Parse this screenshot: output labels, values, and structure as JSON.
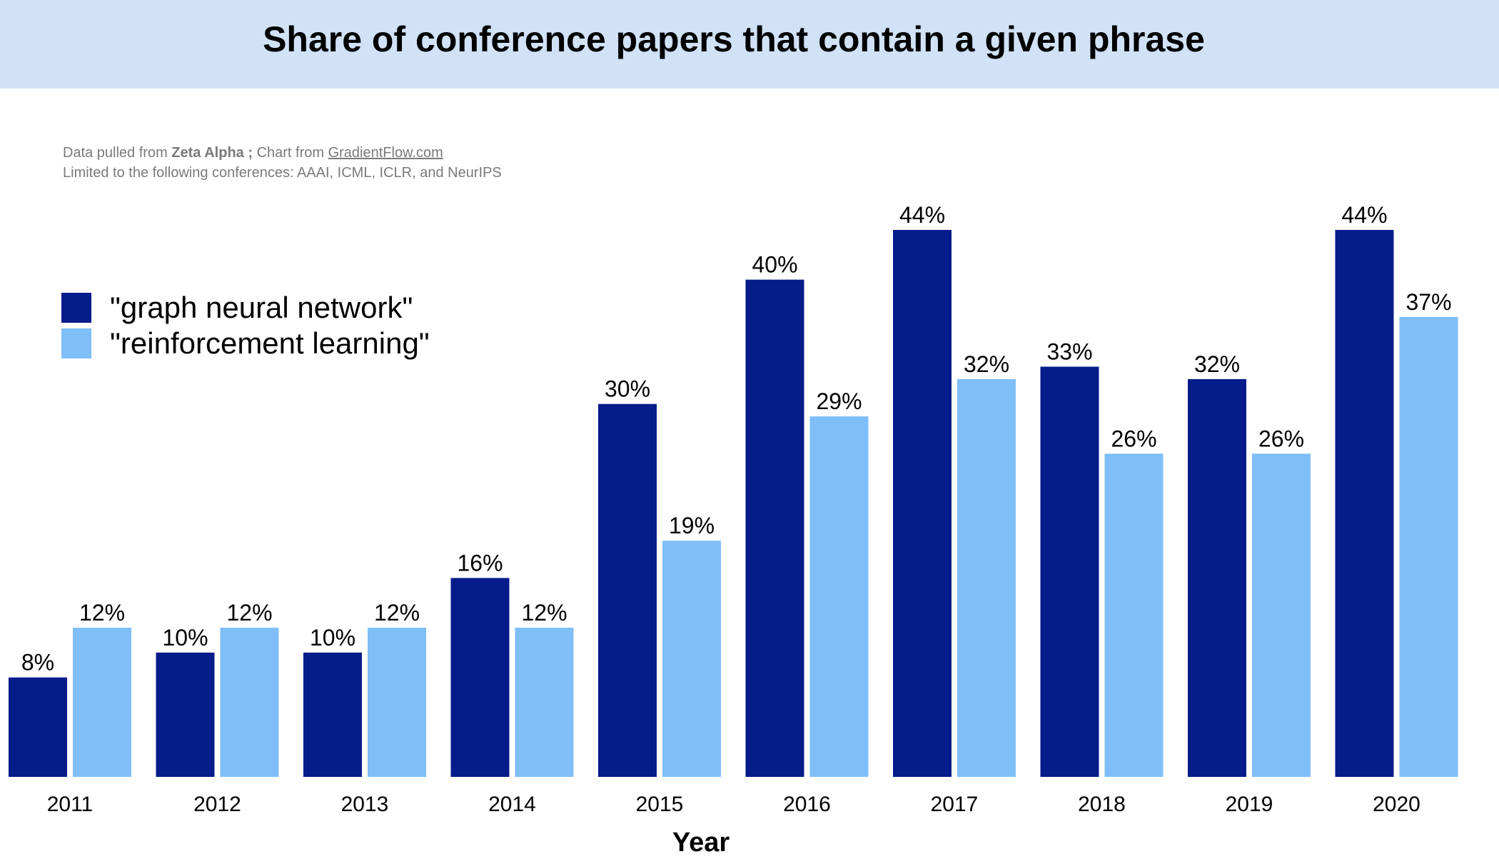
{
  "title": "Share of conference papers that contain a given phrase",
  "source": {
    "prefix": "Data pulled from ",
    "provider": "Zeta Alpha ;",
    "chart_prefix": " Chart from ",
    "chart_site": "GradientFlow.com",
    "limit_note": "Limited to the following conferences:  AAAI, ICML, ICLR, and NeurIPS"
  },
  "colors": {
    "banner": "#d1e2f7",
    "gnn": "#061c8a",
    "rl": "#7fbef9"
  },
  "chart_data": {
    "type": "bar",
    "title": "Share of conference papers that contain a given phrase",
    "xlabel": "Year",
    "ylabel": "",
    "categories": [
      "2011",
      "2012",
      "2013",
      "2014",
      "2015",
      "2016",
      "2017",
      "2018",
      "2019",
      "2020"
    ],
    "series": [
      {
        "name": "\"graph neural network\"",
        "values": [
          8,
          10,
          10,
          16,
          30,
          40,
          44,
          33,
          32,
          44
        ],
        "labels": [
          "8%",
          "10%",
          "10%",
          "16%",
          "30%",
          "40%",
          "44%",
          "33%",
          "32%",
          "44%"
        ]
      },
      {
        "name": "\"reinforcement learning\"",
        "values": [
          12,
          12,
          12,
          12,
          19,
          29,
          32,
          26,
          26,
          37
        ],
        "labels": [
          "12%",
          "12%",
          "12%",
          "12%",
          "19%",
          "29%",
          "32%",
          "26%",
          "26%",
          "37%"
        ]
      }
    ],
    "ylim": [
      0,
      44
    ],
    "grid": false,
    "legend_position": "top-left"
  }
}
